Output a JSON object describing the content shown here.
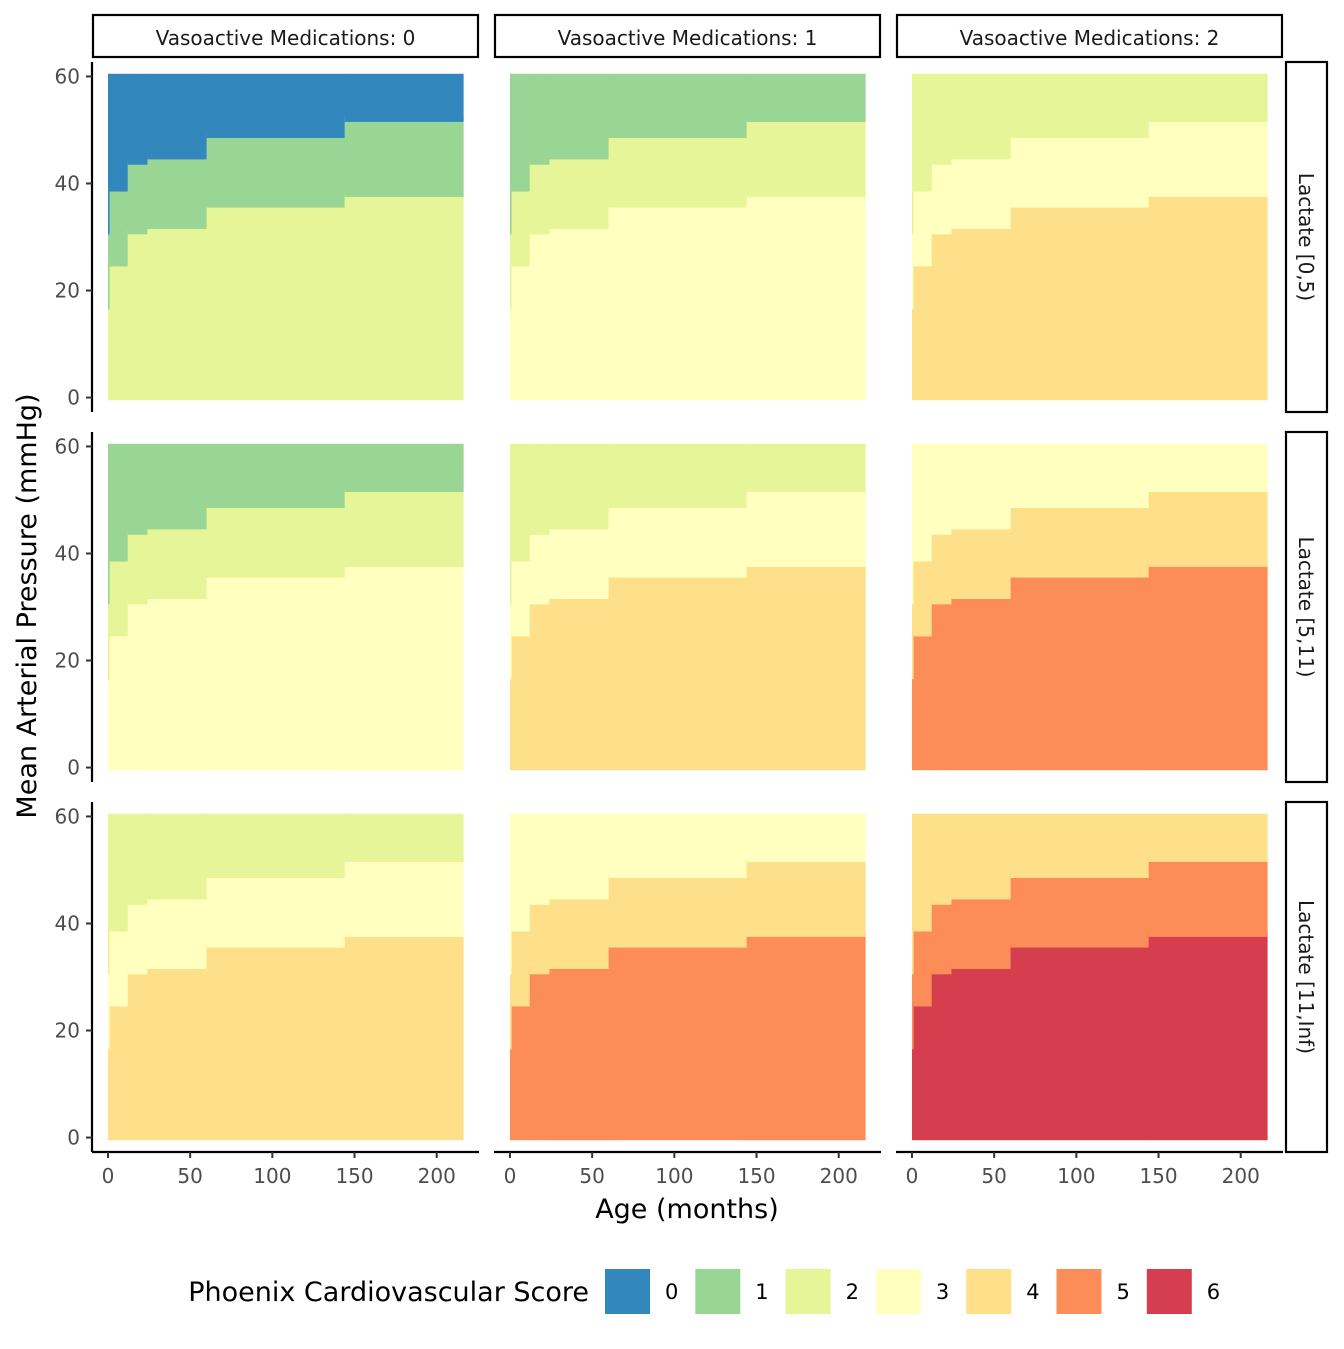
{
  "chart_data": {
    "type": "heatmap",
    "x_axis": {
      "label": "Age (months)",
      "range": [
        0,
        216
      ],
      "ticks": [
        0,
        50,
        100,
        150,
        200
      ]
    },
    "y_axis": {
      "label": "Mean Arterial Pressure (mmHg)",
      "range": [
        0,
        60
      ],
      "ticks": [
        0,
        20,
        40,
        60
      ]
    },
    "column_facets": [
      "Vasoactive Medications: 0",
      "Vasoactive Medications: 1",
      "Vasoactive Medications: 2"
    ],
    "row_facets": [
      "Lactate [0,5)",
      "Lactate [5,11)",
      "Lactate [11,Inf)"
    ],
    "column_score_offsets": [
      0,
      1,
      2
    ],
    "row_score_offsets": [
      0,
      1,
      2
    ],
    "age_bins": [
      {
        "age_from": 0,
        "age_to": 1,
        "lower_cut": 17,
        "upper_cut": 31
      },
      {
        "age_from": 1,
        "age_to": 12,
        "lower_cut": 25,
        "upper_cut": 39
      },
      {
        "age_from": 12,
        "age_to": 24,
        "lower_cut": 31,
        "upper_cut": 44
      },
      {
        "age_from": 24,
        "age_to": 60,
        "lower_cut": 32,
        "upper_cut": 45
      },
      {
        "age_from": 60,
        "age_to": 144,
        "lower_cut": 36,
        "upper_cut": 49
      },
      {
        "age_from": 144,
        "age_to": 216,
        "lower_cut": 38,
        "upper_cut": 52
      }
    ],
    "band_score_add": {
      "below_lower": 2,
      "between": 1,
      "above_upper": 0
    },
    "legend": {
      "title": "Phoenix Cardiovascular Score",
      "position": "bottom",
      "levels": [
        {
          "label": "0",
          "color": "#3288bd"
        },
        {
          "label": "1",
          "color": "#99d594"
        },
        {
          "label": "2",
          "color": "#e6f598"
        },
        {
          "label": "3",
          "color": "#ffffbf"
        },
        {
          "label": "4",
          "color": "#fee08b"
        },
        {
          "label": "5",
          "color": "#fc8d59"
        },
        {
          "label": "6",
          "color": "#d53e4f"
        }
      ]
    },
    "grid": false
  }
}
